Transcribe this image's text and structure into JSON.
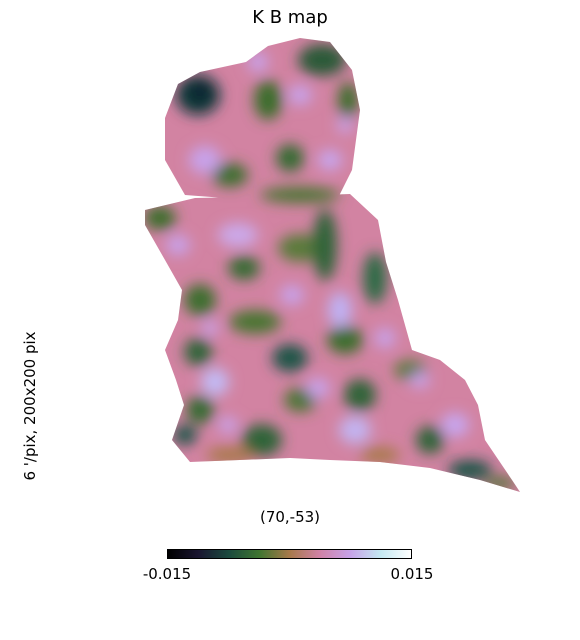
{
  "chart_data": {
    "type": "heatmap",
    "title": "K B map",
    "ylabel": "6 '/pix,   200x200 pix",
    "xlabel": "(70,-53)",
    "colorbar": {
      "min_label": "-0.015",
      "max_label": "0.015",
      "vmin": -0.015,
      "vmax": 0.015,
      "colormap": "cubehelix",
      "stops": [
        "#000000",
        "#1a1530",
        "#1b4a3e",
        "#3f7530",
        "#a7794a",
        "#d082a6",
        "#c7a2e8",
        "#c4e8f2",
        "#ffffff"
      ]
    },
    "background": "#ffffff"
  }
}
